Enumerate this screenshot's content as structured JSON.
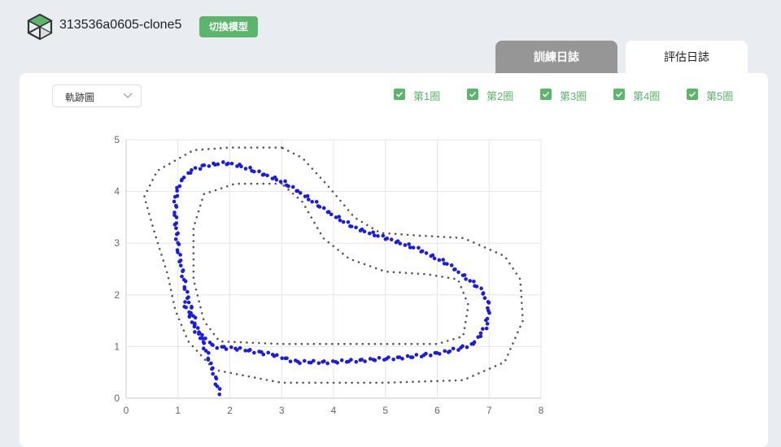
{
  "header": {
    "model_name": "313536a0605-clone5",
    "switch_button": "切換模型",
    "logo_icon": "cube-icon"
  },
  "tabs": [
    {
      "label": "訓練日誌",
      "active": false
    },
    {
      "label": "評估日誌",
      "active": true
    }
  ],
  "controls": {
    "chart_select": "軌跡圖",
    "laps": [
      {
        "label": "第1圈",
        "checked": true
      },
      {
        "label": "第2圈",
        "checked": true
      },
      {
        "label": "第3圈",
        "checked": true
      },
      {
        "label": "第4圈",
        "checked": true
      },
      {
        "label": "第5圈",
        "checked": true
      }
    ]
  },
  "colors": {
    "accent": "#5bb56b",
    "track": "#555555",
    "trajectory": "#1a1aee",
    "tab_inactive": "#969696"
  },
  "chart_data": {
    "type": "scatter",
    "title": "",
    "xlabel": "",
    "ylabel": "",
    "xlim": [
      0,
      8
    ],
    "ylim": [
      0,
      5
    ],
    "xticks": [
      0,
      1,
      2,
      3,
      4,
      5,
      6,
      7,
      8
    ],
    "yticks": [
      0,
      1,
      2,
      3,
      4,
      5
    ],
    "grid": true,
    "series": [
      {
        "role": "track-outer",
        "x": [
          3.0,
          2.0,
          1.3,
          0.6,
          0.35,
          0.55,
          0.8,
          0.95,
          1.2,
          1.7,
          3.0,
          5.0,
          6.5,
          7.3,
          7.65,
          7.6,
          7.3,
          6.5,
          5.6,
          4.9,
          4.4,
          3.9,
          3.4,
          3.0
        ],
        "y": [
          4.85,
          4.85,
          4.8,
          4.4,
          3.9,
          3.2,
          2.4,
          1.7,
          1.1,
          0.55,
          0.3,
          0.3,
          0.35,
          0.7,
          1.5,
          2.3,
          2.75,
          3.1,
          3.15,
          3.2,
          3.5,
          4.1,
          4.65,
          4.85
        ]
      },
      {
        "role": "track-inner",
        "x": [
          3.0,
          2.1,
          1.5,
          1.3,
          1.3,
          1.5,
          1.8,
          3.0,
          4.5,
          6.0,
          6.5,
          6.6,
          6.4,
          5.8,
          5.0,
          4.3,
          3.8,
          3.4,
          3.0
        ],
        "y": [
          4.15,
          4.15,
          3.95,
          3.3,
          2.3,
          1.5,
          1.1,
          1.05,
          1.05,
          1.05,
          1.2,
          1.8,
          2.3,
          2.4,
          2.45,
          2.7,
          3.1,
          3.8,
          4.15
        ]
      },
      {
        "role": "trajectory",
        "x": [
          1.8,
          1.7,
          1.55,
          1.35,
          1.15,
          1.0,
          0.95,
          0.95,
          1.05,
          1.25,
          1.5,
          1.9,
          2.2,
          2.6,
          3.0,
          3.4,
          3.9,
          4.4,
          5.0,
          5.6,
          6.2,
          6.6,
          6.85,
          7.0,
          6.95,
          6.7,
          6.2,
          5.5,
          4.8,
          4.0,
          3.3,
          2.8,
          2.2,
          1.7,
          1.35,
          1.1
        ],
        "y": [
          0.1,
          0.45,
          0.9,
          1.4,
          2.1,
          2.9,
          3.5,
          3.9,
          4.2,
          4.4,
          4.5,
          4.55,
          4.5,
          4.35,
          4.2,
          3.95,
          3.6,
          3.3,
          3.1,
          2.9,
          2.6,
          2.3,
          2.1,
          1.8,
          1.4,
          1.05,
          0.9,
          0.8,
          0.75,
          0.7,
          0.7,
          0.85,
          0.95,
          1.0,
          1.3,
          1.9
        ]
      }
    ]
  }
}
